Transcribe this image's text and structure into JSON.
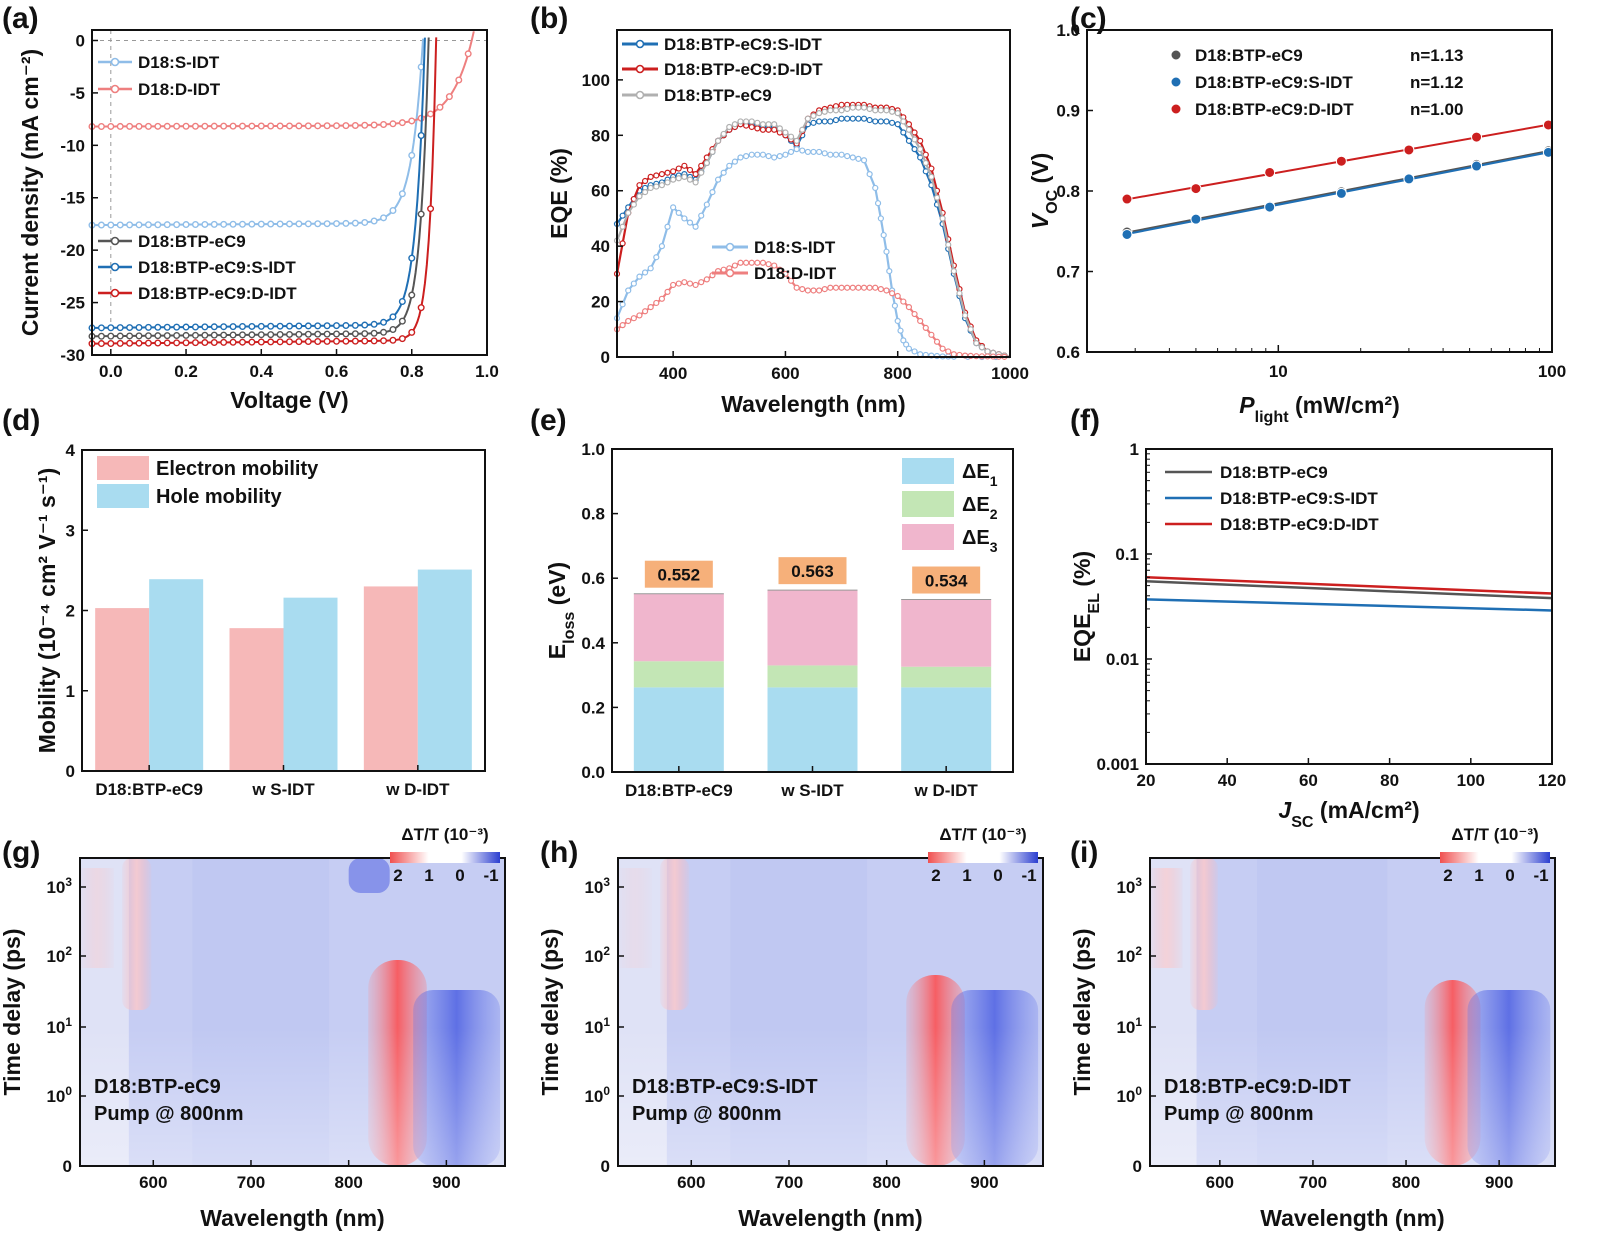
{
  "colors": {
    "gray": "#555555",
    "blue": "#1f6fb4",
    "red": "#cc1f1f",
    "lightblue": "#8fbde8",
    "pink": "#ee7f7f",
    "lightgray": "#b0b0b0",
    "electron": "#f6b8b8",
    "hole": "#a9dcf0",
    "dE1": "#a9dcf0",
    "dE2": "#c3e6b5",
    "dE3": "#f0b6cd",
    "labelbox": "#f6b07a",
    "heat_pos": "#e83a3a",
    "heat_neg": "#2a3fd6"
  },
  "chart_data": [
    {
      "id": "a",
      "panel_label": "(a)",
      "type": "line",
      "xlabel": "Voltage (V)",
      "ylabel": "Current density (mA cm⁻²)",
      "xlim": [
        -0.05,
        1.0
      ],
      "ylim": [
        -30,
        1
      ],
      "xticks": [
        0.0,
        0.2,
        0.4,
        0.6,
        0.8,
        1.0
      ],
      "xticklabels": [
        "0.0",
        "0.2",
        "0.4",
        "0.6",
        "0.8",
        "1.0"
      ],
      "yticks": [
        0,
        -5,
        -10,
        -15,
        -20,
        -25,
        -30
      ],
      "yticklabels": [
        "0",
        "-5",
        "-10",
        "-15",
        "-20",
        "-25",
        "-30"
      ],
      "series": [
        {
          "name": "D18:S-IDT",
          "color": "lightblue",
          "legend_group": "top",
          "jsc": -17.6,
          "voc": 0.83,
          "vk": 0.74,
          "s": 0.03
        },
        {
          "name": "D18:D-IDT",
          "color": "pink",
          "legend_group": "top",
          "jsc": -8.2,
          "voc": 0.96,
          "vk": 0.84,
          "s": 0.055
        },
        {
          "name": "D18:BTP-eC9",
          "color": "gray",
          "legend_group": "bottom",
          "jsc": -28.2,
          "voc": 0.845,
          "vk": 0.78,
          "s": 0.022
        },
        {
          "name": "D18:BTP-eC9:S-IDT",
          "color": "blue",
          "legend_group": "bottom",
          "jsc": -27.4,
          "voc": 0.835,
          "vk": 0.77,
          "s": 0.024
        },
        {
          "name": "D18:BTP-eC9:D-IDT",
          "color": "red",
          "legend_group": "bottom",
          "jsc": -28.9,
          "voc": 0.865,
          "vk": 0.81,
          "s": 0.018
        }
      ]
    },
    {
      "id": "b",
      "panel_label": "(b)",
      "type": "line",
      "xlabel": "Wavelength (nm)",
      "ylabel": "EQE (%)",
      "xlim": [
        300,
        1000
      ],
      "ylim": [
        0,
        118
      ],
      "xticks": [
        400,
        600,
        800,
        1000
      ],
      "xticklabels": [
        "400",
        "600",
        "800",
        "1000"
      ],
      "yticks": [
        0,
        20,
        40,
        60,
        80,
        100
      ],
      "yticklabels": [
        "0",
        "20",
        "40",
        "60",
        "80",
        "100"
      ],
      "series": [
        {
          "name": "D18:BTP-eC9:S-IDT",
          "color": "blue",
          "x": [
            300,
            320,
            340,
            360,
            380,
            400,
            420,
            440,
            460,
            480,
            500,
            520,
            540,
            560,
            580,
            600,
            620,
            640,
            660,
            680,
            700,
            720,
            740,
            760,
            780,
            800,
            820,
            840,
            860,
            880,
            900,
            920,
            940,
            960,
            980,
            1000
          ],
          "y": [
            48,
            54,
            60,
            62,
            63,
            65,
            66,
            64,
            70,
            78,
            82,
            84,
            84,
            83,
            83,
            80,
            76,
            84,
            85,
            85,
            86,
            86,
            86,
            85,
            85,
            84,
            78,
            72,
            62,
            48,
            30,
            14,
            5,
            2,
            1,
            0
          ]
        },
        {
          "name": "D18:BTP-eC9:D-IDT",
          "color": "red",
          "x": [
            300,
            320,
            340,
            360,
            380,
            400,
            420,
            440,
            460,
            480,
            500,
            520,
            540,
            560,
            580,
            600,
            620,
            640,
            660,
            680,
            700,
            720,
            740,
            760,
            780,
            800,
            820,
            840,
            860,
            880,
            900,
            920,
            940,
            960,
            980,
            1000
          ],
          "y": [
            30,
            52,
            62,
            65,
            66,
            67,
            69,
            66,
            72,
            78,
            82,
            84,
            83,
            82,
            82,
            80,
            77,
            86,
            89,
            90,
            91,
            91,
            91,
            90,
            90,
            89,
            84,
            78,
            68,
            52,
            33,
            16,
            6,
            2,
            1,
            0
          ]
        },
        {
          "name": "D18:BTP-eC9",
          "color": "lightgray",
          "x": [
            300,
            320,
            340,
            360,
            380,
            400,
            420,
            440,
            460,
            480,
            500,
            520,
            540,
            560,
            580,
            600,
            620,
            640,
            660,
            680,
            700,
            720,
            740,
            760,
            780,
            800,
            820,
            840,
            860,
            880,
            900,
            920,
            940,
            960,
            980,
            1000
          ],
          "y": [
            42,
            52,
            58,
            61,
            62,
            64,
            65,
            63,
            70,
            78,
            83,
            85,
            85,
            84,
            84,
            81,
            78,
            86,
            88,
            89,
            89,
            90,
            90,
            89,
            89,
            88,
            82,
            75,
            65,
            50,
            31,
            15,
            5,
            2,
            1,
            0
          ]
        },
        {
          "name": "D18:S-IDT",
          "color": "lightblue",
          "x": [
            300,
            320,
            340,
            360,
            380,
            400,
            420,
            440,
            460,
            480,
            500,
            520,
            540,
            560,
            580,
            600,
            620,
            640,
            660,
            680,
            700,
            720,
            740,
            760,
            770,
            780,
            790,
            800,
            810,
            820,
            840,
            860,
            880,
            900,
            950,
            1000
          ],
          "y": [
            14,
            24,
            29,
            32,
            40,
            54,
            50,
            47,
            55,
            64,
            69,
            72,
            73,
            73,
            72,
            73,
            75,
            74,
            74,
            73,
            73,
            72,
            71,
            61,
            50,
            38,
            24,
            13,
            6,
            3,
            1,
            0.5,
            0.2,
            0.1,
            0,
            0
          ]
        },
        {
          "name": "D18:D-IDT",
          "color": "pink",
          "x": [
            300,
            320,
            340,
            360,
            380,
            400,
            420,
            440,
            460,
            480,
            500,
            520,
            540,
            560,
            580,
            600,
            620,
            640,
            660,
            680,
            700,
            720,
            740,
            760,
            780,
            800,
            820,
            840,
            860,
            880,
            900,
            920,
            940,
            960,
            980,
            1000
          ],
          "y": [
            10,
            13,
            15,
            18,
            21,
            26,
            27,
            26,
            28,
            31,
            32,
            34,
            34,
            34,
            33,
            30,
            25,
            24,
            24,
            25,
            25,
            25,
            25,
            25,
            24,
            22,
            18,
            13,
            8,
            3,
            1,
            0.5,
            0.3,
            0.2,
            0.1,
            0
          ]
        }
      ]
    },
    {
      "id": "c",
      "panel_label": "(c)",
      "type": "scatter",
      "xscale": "log",
      "xlabel": "P_light (mW/cm²)",
      "xlabel_main": "P",
      "xlabel_sub": "light",
      "xlabel_rest": " (mW/cm²)",
      "ylabel_main": "V",
      "ylabel_sub": "OC",
      "ylabel_rest": " (V)",
      "xlim": [
        2,
        100
      ],
      "ylim": [
        0.6,
        1.0
      ],
      "xticks": [
        10,
        100
      ],
      "xticklabels": [
        "10",
        "100"
      ],
      "yticks": [
        0.6,
        0.7,
        0.8,
        0.9,
        1.0
      ],
      "yticklabels": [
        "0.6",
        "0.7",
        "0.8",
        "0.9",
        "1.0"
      ],
      "x": [
        2.8,
        5.0,
        9.3,
        17,
        30,
        53,
        97
      ],
      "series": [
        {
          "name": "D18:BTP-eC9",
          "n_label": "n=1.13",
          "color": "gray",
          "y": [
            0.749,
            0.766,
            0.781,
            0.799,
            0.816,
            0.833,
            0.85
          ]
        },
        {
          "name": "D18:BTP-eC9:S-IDT",
          "n_label": "n=1.12",
          "color": "blue",
          "y": [
            0.746,
            0.765,
            0.78,
            0.797,
            0.815,
            0.831,
            0.848
          ]
        },
        {
          "name": "D18:BTP-eC9:D-IDT",
          "n_label": "n=1.00",
          "color": "red",
          "y": [
            0.79,
            0.803,
            0.823,
            0.837,
            0.851,
            0.867,
            0.882
          ]
        }
      ]
    },
    {
      "id": "d",
      "panel_label": "(d)",
      "type": "bar",
      "ylabel": "Mobility (10⁻⁴ cm² V⁻¹ s⁻¹)",
      "ylim": [
        0,
        4
      ],
      "yticks": [
        0,
        1,
        2,
        3,
        4
      ],
      "yticklabels": [
        "0",
        "1",
        "2",
        "3",
        "4"
      ],
      "categories": [
        "D18:BTP-eC9",
        "w S-IDT",
        "w D-IDT"
      ],
      "series": [
        {
          "name": "Electron mobility",
          "color": "electron",
          "values": [
            2.03,
            1.78,
            2.3
          ]
        },
        {
          "name": "Hole mobility",
          "color": "hole",
          "values": [
            2.39,
            2.16,
            2.51
          ]
        }
      ]
    },
    {
      "id": "e",
      "panel_label": "(e)",
      "type": "bar",
      "stacked": true,
      "ylabel_main": "E",
      "ylabel_sub": "loss",
      "ylabel_rest": " (eV)",
      "ylim": [
        0,
        1.0
      ],
      "yticks": [
        0.0,
        0.2,
        0.4,
        0.6,
        0.8,
        1.0
      ],
      "yticklabels": [
        "0.0",
        "0.2",
        "0.4",
        "0.6",
        "0.8",
        "1.0"
      ],
      "categories": [
        "D18:BTP-eC9",
        "w S-IDT",
        "w D-IDT"
      ],
      "totals": [
        "0.552",
        "0.563",
        "0.534"
      ],
      "series": [
        {
          "name": "ΔE1",
          "main": "ΔE",
          "sub": "1",
          "color": "dE1",
          "values": [
            0.262,
            0.262,
            0.262
          ]
        },
        {
          "name": "ΔE2",
          "main": "ΔE",
          "sub": "2",
          "color": "dE2",
          "values": [
            0.081,
            0.068,
            0.064
          ]
        },
        {
          "name": "ΔE3",
          "main": "ΔE",
          "sub": "3",
          "color": "dE3",
          "values": [
            0.209,
            0.233,
            0.208
          ]
        }
      ]
    },
    {
      "id": "f",
      "panel_label": "(f)",
      "type": "line",
      "yscale": "log",
      "xlabel_main": "J",
      "xlabel_sub": "SC",
      "xlabel_rest": " (mA/cm²)",
      "ylabel_main": "EQE",
      "ylabel_sub": "EL",
      "ylabel_rest": " (%)",
      "xlim": [
        20,
        120
      ],
      "ylim": [
        0.001,
        1
      ],
      "xticks": [
        20,
        40,
        60,
        80,
        100,
        120
      ],
      "xticklabels": [
        "20",
        "40",
        "60",
        "80",
        "100",
        "120"
      ],
      "yticks": [
        0.001,
        0.01,
        0.1,
        1
      ],
      "yticklabels": [
        "0.001",
        "0.01",
        "0.1",
        "1"
      ],
      "series": [
        {
          "name": "D18:BTP-eC9",
          "color": "gray",
          "x": [
            20,
            120
          ],
          "y": [
            0.055,
            0.038
          ]
        },
        {
          "name": "D18:BTP-eC9:S-IDT",
          "color": "blue",
          "x": [
            20,
            120
          ],
          "y": [
            0.037,
            0.029
          ]
        },
        {
          "name": "D18:BTP-eC9:D-IDT",
          "color": "red",
          "x": [
            20,
            120
          ],
          "y": [
            0.06,
            0.042
          ]
        }
      ]
    },
    {
      "id": "g",
      "panel_label": "(g)",
      "type": "heatmap",
      "xlabel": "Wavelength (nm)",
      "ylabel": "Time delay (ps)",
      "xlim": [
        525,
        960
      ],
      "xticks": [
        600,
        700,
        800,
        900
      ],
      "xticklabels": [
        "600",
        "700",
        "800",
        "900"
      ],
      "ytick_values": [
        0,
        1,
        10,
        100,
        1000
      ],
      "colorbar_title": "ΔT/T (10⁻³)",
      "colorbar_ticks": [
        "2",
        "1",
        "0",
        "-1"
      ],
      "annotation": [
        "D18:BTP-eC9",
        "Pump @ 800nm"
      ]
    },
    {
      "id": "h",
      "panel_label": "(h)",
      "type": "heatmap",
      "xlabel": "Wavelength (nm)",
      "ylabel": "Time delay (ps)",
      "xlim": [
        525,
        960
      ],
      "xticks": [
        600,
        700,
        800,
        900
      ],
      "xticklabels": [
        "600",
        "700",
        "800",
        "900"
      ],
      "ytick_values": [
        0,
        1,
        10,
        100,
        1000
      ],
      "colorbar_title": "ΔT/T (10⁻³)",
      "colorbar_ticks": [
        "2",
        "1",
        "0",
        "-1"
      ],
      "annotation": [
        "D18:BTP-eC9:S-IDT",
        "Pump @ 800nm"
      ]
    },
    {
      "id": "i",
      "panel_label": "(i)",
      "type": "heatmap",
      "xlabel": "Wavelength (nm)",
      "ylabel": "Time delay (ps)",
      "xlim": [
        525,
        960
      ],
      "xticks": [
        600,
        700,
        800,
        900
      ],
      "xticklabels": [
        "600",
        "700",
        "800",
        "900"
      ],
      "ytick_values": [
        0,
        1,
        10,
        100,
        1000
      ],
      "colorbar_title": "ΔT/T (10⁻³)",
      "colorbar_ticks": [
        "2",
        "1",
        "0",
        "-1"
      ],
      "annotation": [
        "D18:BTP-eC9:D-IDT",
        "Pump @ 800nm"
      ]
    }
  ]
}
